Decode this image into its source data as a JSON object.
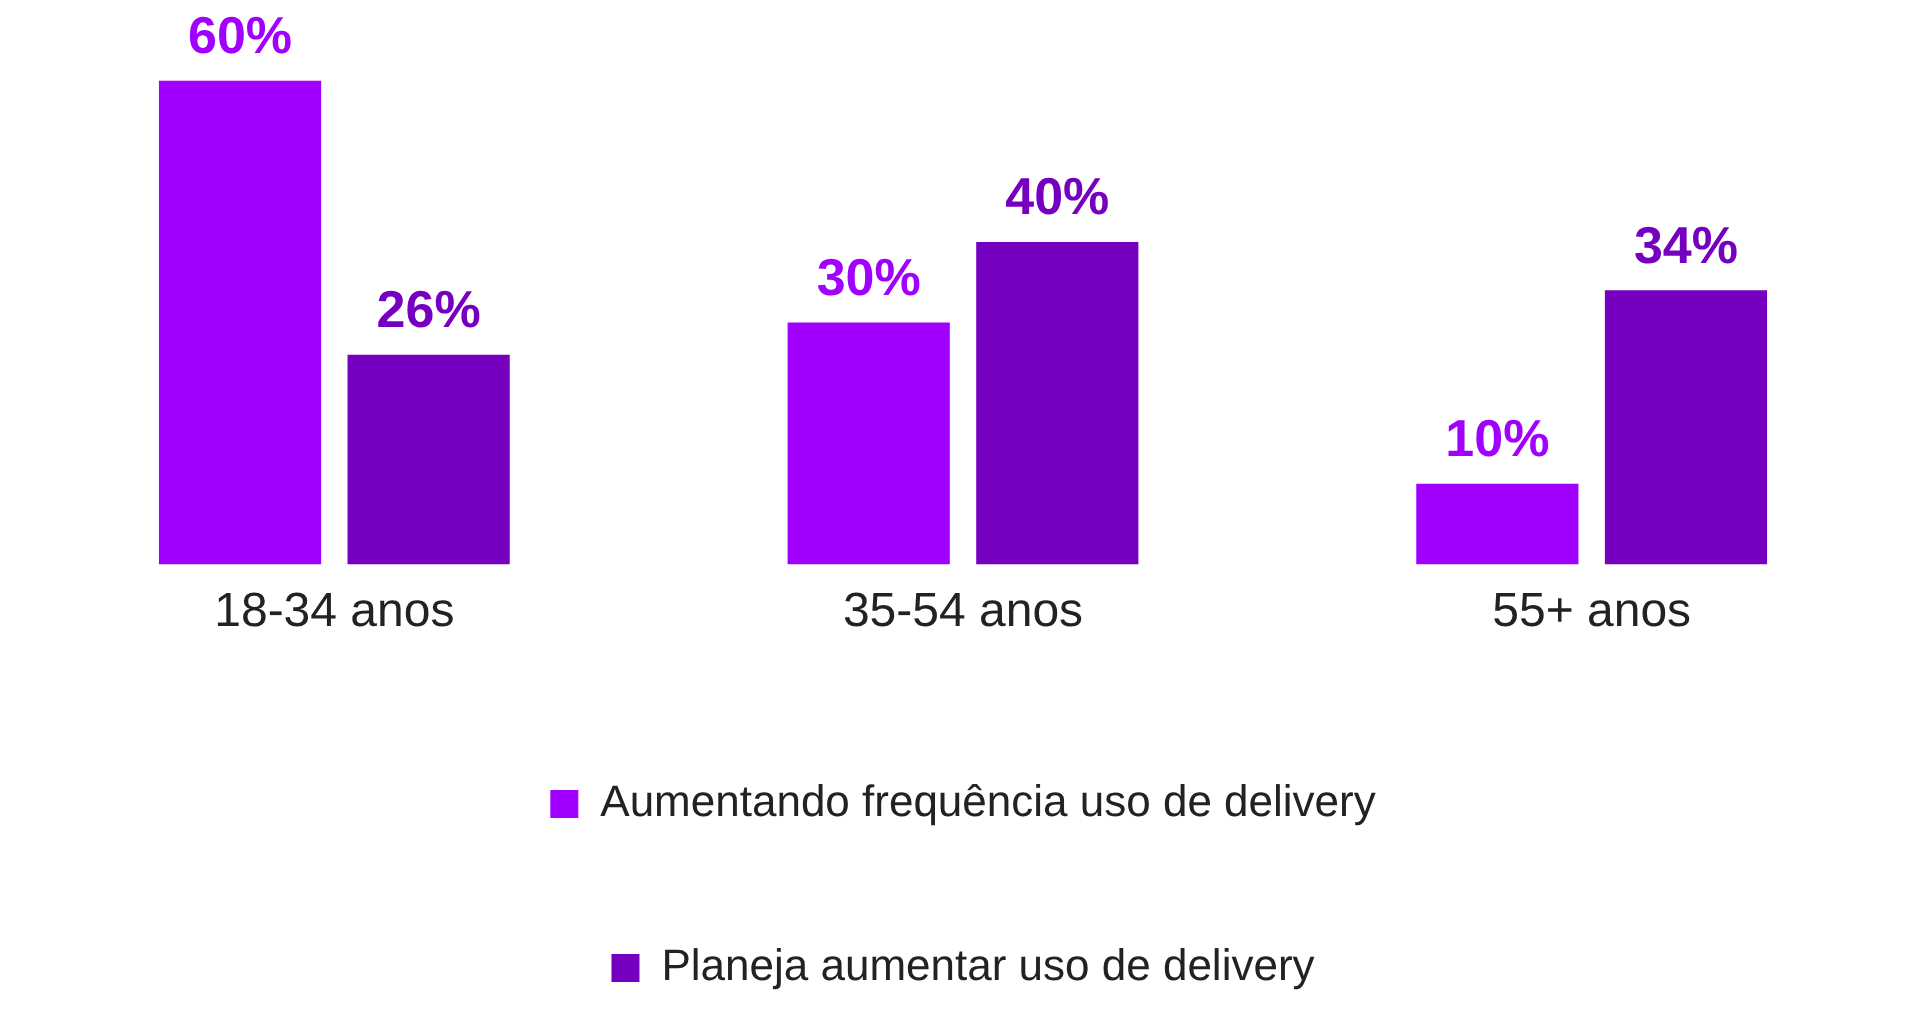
{
  "chart_data": {
    "type": "bar",
    "categories": [
      "18-34 anos",
      "35-54 anos",
      "55+ anos"
    ],
    "series": [
      {
        "name": "Aumentando frequência uso de delivery",
        "color": "#a100ff",
        "values": [
          60,
          30,
          10
        ],
        "value_labels": [
          "60%",
          "30%",
          "10%"
        ]
      },
      {
        "name": "Planeja aumentar uso de delivery",
        "color": "#7500c0",
        "values": [
          26,
          40,
          34
        ],
        "value_labels": [
          "26%",
          "40%",
          "34%"
        ]
      }
    ],
    "legend": "bottom",
    "grid": false
  }
}
